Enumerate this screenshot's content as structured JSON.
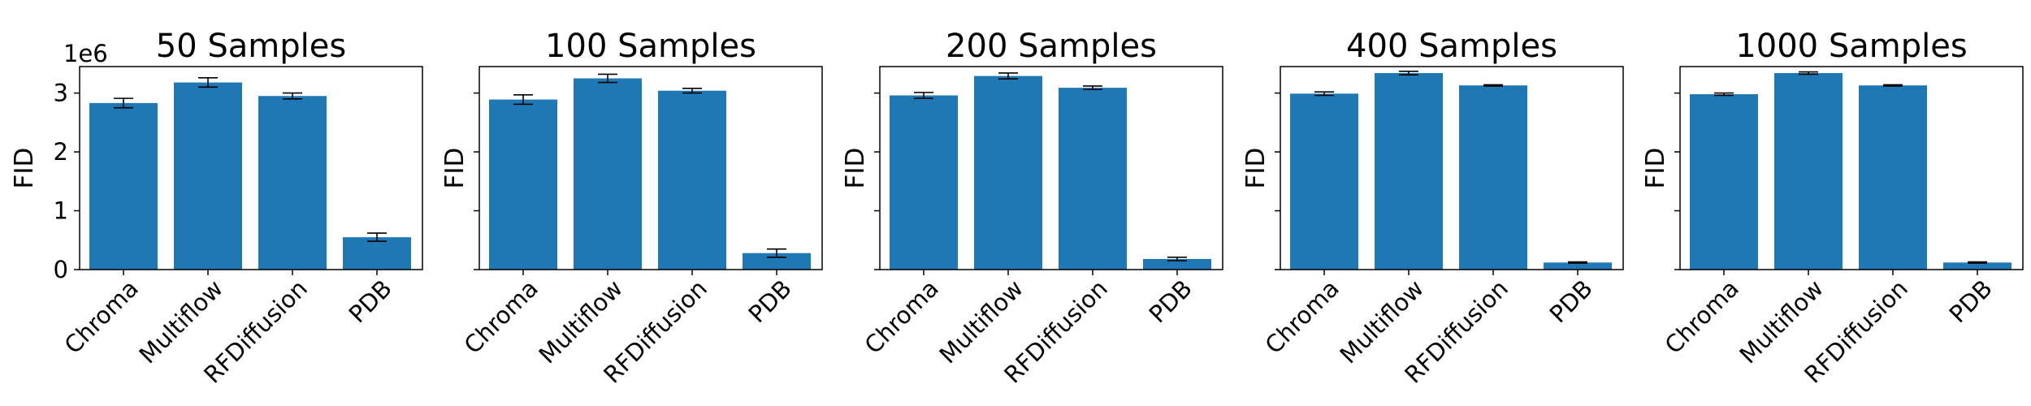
{
  "chart_data": [
    {
      "type": "bar",
      "title": "50 Samples",
      "ylabel": "FID",
      "offset_text": "1e6",
      "ylim": [
        0,
        3.45
      ],
      "yticks": [
        0,
        1,
        2,
        3
      ],
      "categories": [
        "Chroma",
        "Multiflow",
        "RFDiffusion",
        "PDB"
      ],
      "values": [
        2.83,
        3.18,
        2.95,
        0.55
      ],
      "errors": [
        0.08,
        0.08,
        0.05,
        0.07
      ],
      "bar_color": "#1f77b4",
      "grid": false
    },
    {
      "type": "bar",
      "title": "100 Samples",
      "ylabel": "FID",
      "ylim": [
        0,
        3.45
      ],
      "yticks": [
        0,
        1,
        2,
        3
      ],
      "categories": [
        "Chroma",
        "Multiflow",
        "RFDiffusion",
        "PDB"
      ],
      "values": [
        2.89,
        3.25,
        3.04,
        0.28
      ],
      "errors": [
        0.08,
        0.07,
        0.04,
        0.07
      ],
      "bar_color": "#1f77b4",
      "grid": false
    },
    {
      "type": "bar",
      "title": "200 Samples",
      "ylabel": "FID",
      "ylim": [
        0,
        3.45
      ],
      "yticks": [
        0,
        1,
        2,
        3
      ],
      "categories": [
        "Chroma",
        "Multiflow",
        "RFDiffusion",
        "PDB"
      ],
      "values": [
        2.96,
        3.29,
        3.09,
        0.18
      ],
      "errors": [
        0.05,
        0.05,
        0.03,
        0.03
      ],
      "bar_color": "#1f77b4",
      "grid": false
    },
    {
      "type": "bar",
      "title": "400 Samples",
      "ylabel": "FID",
      "ylim": [
        0,
        3.45
      ],
      "yticks": [
        0,
        1,
        2,
        3
      ],
      "categories": [
        "Chroma",
        "Multiflow",
        "RFDiffusion",
        "PDB"
      ],
      "values": [
        2.99,
        3.34,
        3.13,
        0.12
      ],
      "errors": [
        0.03,
        0.03,
        0.01,
        0.01
      ],
      "bar_color": "#1f77b4",
      "grid": false
    },
    {
      "type": "bar",
      "title": "1000 Samples",
      "ylabel": "FID",
      "ylim": [
        0,
        3.45
      ],
      "yticks": [
        0,
        1,
        2,
        3
      ],
      "categories": [
        "Chroma",
        "Multiflow",
        "RFDiffusion",
        "PDB"
      ],
      "values": [
        2.98,
        3.34,
        3.13,
        0.12
      ],
      "errors": [
        0.02,
        0.02,
        0.01,
        0.01
      ],
      "bar_color": "#1f77b4",
      "grid": false
    }
  ]
}
